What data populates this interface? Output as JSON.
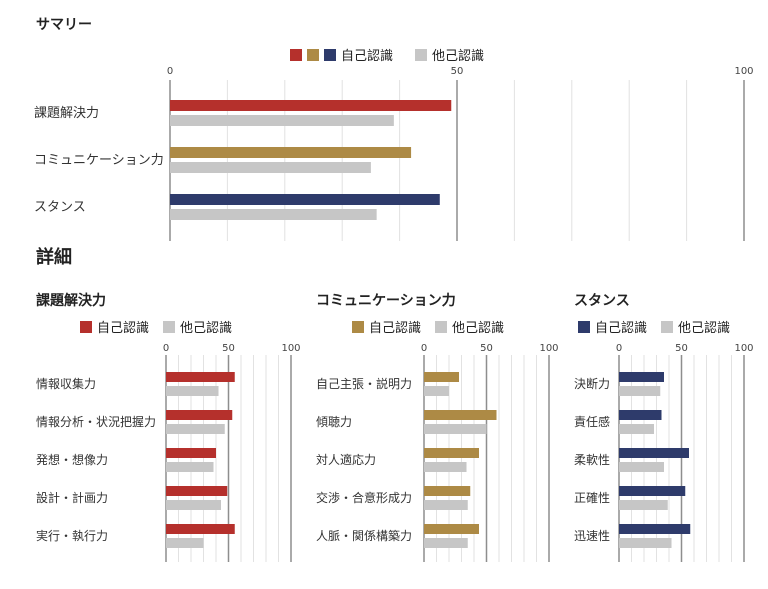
{
  "colors": {
    "red": "#b5302c",
    "gold": "#ad8a45",
    "navy": "#2e3b6b",
    "gray": "#c6c6c6",
    "grid_minor": "#e2e2e2",
    "grid_major": "#8e8e8e"
  },
  "summary": {
    "title": "サマリー",
    "legend_self": "自己認識",
    "legend_other": "他己認識"
  },
  "detail_title": "詳細",
  "chart_data": [
    {
      "id": "summary",
      "type": "bar",
      "orientation": "horizontal",
      "categories": [
        "課題解決力",
        "コミュニケーション力",
        "スタンス"
      ],
      "series": [
        {
          "name": "自己認識",
          "values": [
            49,
            42,
            47
          ],
          "colors": [
            "#b5302c",
            "#ad8a45",
            "#2e3b6b"
          ]
        },
        {
          "name": "他己認識",
          "values": [
            39,
            35,
            36
          ],
          "color": "#c6c6c6"
        }
      ],
      "xlim": [
        0,
        100
      ],
      "ticks": [
        "0",
        "50",
        "100"
      ],
      "tick_values": [
        0,
        50,
        100
      ],
      "grid": true,
      "legend_position": "top"
    },
    {
      "id": "kadai",
      "type": "bar",
      "orientation": "horizontal",
      "title": "課題解決力",
      "categories": [
        "情報収集力",
        "情報分析・状況把握力",
        "発想・想像力",
        "設計・計画力",
        "実行・執行力"
      ],
      "series": [
        {
          "name": "自己認識",
          "values": [
            55,
            53,
            40,
            49,
            55
          ],
          "color": "#b5302c"
        },
        {
          "name": "他己認識",
          "values": [
            42,
            47,
            38,
            44,
            30
          ],
          "color": "#c6c6c6"
        }
      ],
      "xlim": [
        0,
        100
      ],
      "ticks": [
        "0",
        "50",
        "100"
      ],
      "tick_values": [
        0,
        50,
        100
      ],
      "grid": true,
      "legend_position": "top"
    },
    {
      "id": "comm",
      "type": "bar",
      "orientation": "horizontal",
      "title": "コミュニケーション力",
      "categories": [
        "自己主張・説明力",
        "傾聴力",
        "対人適応力",
        "交渉・合意形成力",
        "人脈・関係構築力"
      ],
      "series": [
        {
          "name": "自己認識",
          "values": [
            28,
            58,
            44,
            37,
            44
          ],
          "color": "#ad8a45"
        },
        {
          "name": "他己認識",
          "values": [
            20,
            50,
            34,
            35,
            35
          ],
          "color": "#c6c6c6"
        }
      ],
      "xlim": [
        0,
        100
      ],
      "ticks": [
        "0",
        "50",
        "100"
      ],
      "tick_values": [
        0,
        50,
        100
      ],
      "grid": true,
      "legend_position": "top"
    },
    {
      "id": "stance",
      "type": "bar",
      "orientation": "horizontal",
      "title": "スタンス",
      "categories": [
        "決断力",
        "責任感",
        "柔軟性",
        "正確性",
        "迅速性"
      ],
      "series": [
        {
          "name": "自己認識",
          "values": [
            36,
            34,
            56,
            53,
            57
          ],
          "color": "#2e3b6b"
        },
        {
          "name": "他己認識",
          "values": [
            33,
            28,
            36,
            39,
            42
          ],
          "color": "#c6c6c6"
        }
      ],
      "xlim": [
        0,
        100
      ],
      "ticks": [
        "0",
        "50",
        "100"
      ],
      "tick_values": [
        0,
        50,
        100
      ],
      "grid": true,
      "legend_position": "top"
    }
  ]
}
